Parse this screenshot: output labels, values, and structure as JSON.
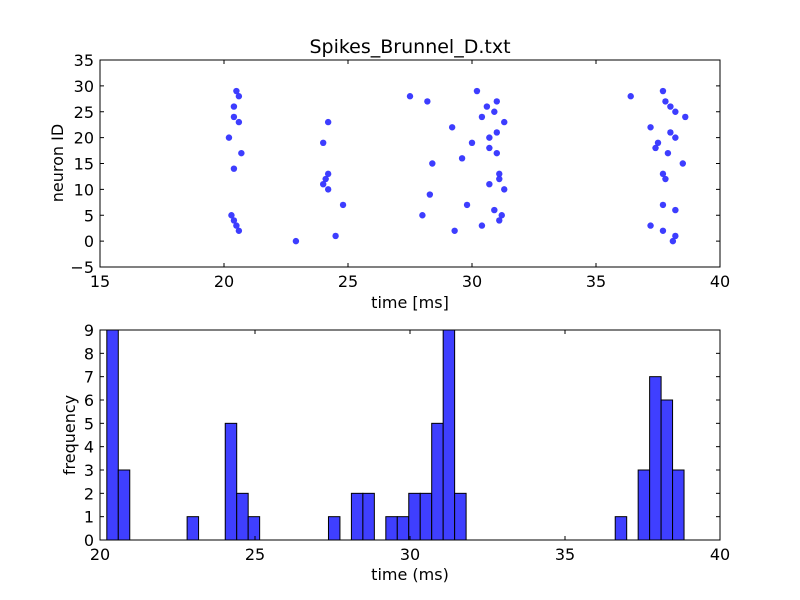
{
  "chart_data": [
    {
      "type": "scatter",
      "title": "Spikes_Brunnel_D.txt",
      "xlabel": "time [ms]",
      "ylabel": "neuron ID",
      "xlim": [
        15,
        40
      ],
      "ylim": [
        -5,
        35
      ],
      "xticks": [
        15,
        20,
        25,
        30,
        35,
        40
      ],
      "yticks": [
        -5,
        0,
        5,
        10,
        15,
        20,
        25,
        30,
        35
      ],
      "xtick_labels": [
        "15",
        "20",
        "25",
        "30",
        "35",
        "40"
      ],
      "ytick_labels": [
        "−5",
        "0",
        "5",
        "10",
        "15",
        "20",
        "25",
        "30",
        "35"
      ],
      "grid": false,
      "color": "#3333ff",
      "points": [
        [
          20.5,
          29
        ],
        [
          20.6,
          28
        ],
        [
          20.4,
          26
        ],
        [
          20.4,
          24
        ],
        [
          20.6,
          23
        ],
        [
          20.2,
          20
        ],
        [
          20.7,
          17
        ],
        [
          20.4,
          14
        ],
        [
          20.3,
          5
        ],
        [
          20.4,
          4
        ],
        [
          20.5,
          3
        ],
        [
          20.6,
          2
        ],
        [
          22.9,
          0
        ],
        [
          24.2,
          23
        ],
        [
          24.0,
          19
        ],
        [
          24.2,
          13
        ],
        [
          24.1,
          12
        ],
        [
          24.0,
          11
        ],
        [
          24.2,
          10
        ],
        [
          24.8,
          7
        ],
        [
          24.5,
          1
        ],
        [
          27.5,
          28
        ],
        [
          28.2,
          27
        ],
        [
          28.4,
          15
        ],
        [
          28.3,
          9
        ],
        [
          28.0,
          5
        ],
        [
          29.3,
          2
        ],
        [
          29.2,
          22
        ],
        [
          29.6,
          16
        ],
        [
          29.8,
          7
        ],
        [
          30.0,
          19
        ],
        [
          30.2,
          29
        ],
        [
          30.4,
          24
        ],
        [
          30.6,
          26
        ],
        [
          31.0,
          27
        ],
        [
          30.9,
          25
        ],
        [
          31.3,
          23
        ],
        [
          31.0,
          21
        ],
        [
          30.7,
          20
        ],
        [
          30.7,
          18
        ],
        [
          31.0,
          17
        ],
        [
          31.1,
          13
        ],
        [
          31.1,
          12
        ],
        [
          30.7,
          11
        ],
        [
          31.3,
          10
        ],
        [
          30.9,
          6
        ],
        [
          31.2,
          5
        ],
        [
          31.1,
          4
        ],
        [
          30.4,
          3
        ],
        [
          36.4,
          28
        ],
        [
          37.7,
          29
        ],
        [
          37.8,
          27
        ],
        [
          38.0,
          26
        ],
        [
          38.2,
          25
        ],
        [
          38.6,
          24
        ],
        [
          37.2,
          22
        ],
        [
          38.0,
          21
        ],
        [
          38.2,
          20
        ],
        [
          37.5,
          19
        ],
        [
          37.4,
          18
        ],
        [
          37.9,
          17
        ],
        [
          38.5,
          15
        ],
        [
          37.7,
          13
        ],
        [
          37.8,
          12
        ],
        [
          37.7,
          7
        ],
        [
          38.2,
          6
        ],
        [
          37.2,
          3
        ],
        [
          37.7,
          2
        ],
        [
          38.2,
          1
        ],
        [
          38.1,
          0
        ]
      ]
    },
    {
      "type": "bar",
      "xlabel": "time (ms)",
      "ylabel": "frequency",
      "xlim": [
        20,
        40
      ],
      "ylim": [
        0,
        9
      ],
      "xticks": [
        20,
        25,
        30,
        35,
        40
      ],
      "yticks": [
        0,
        1,
        2,
        3,
        4,
        5,
        6,
        7,
        8,
        9
      ],
      "xtick_labels": [
        "20",
        "25",
        "30",
        "35",
        "40"
      ],
      "ytick_labels": [
        "0",
        "1",
        "2",
        "3",
        "4",
        "5",
        "6",
        "7",
        "8",
        "9"
      ],
      "grid": false,
      "color": "#3f3fff",
      "bin_width": 0.37,
      "bins": [
        [
          20.22,
          9
        ],
        [
          20.59,
          3
        ],
        [
          22.81,
          1
        ],
        [
          24.04,
          5
        ],
        [
          24.41,
          2
        ],
        [
          24.78,
          1
        ],
        [
          27.37,
          1
        ],
        [
          28.11,
          2
        ],
        [
          28.48,
          2
        ],
        [
          29.22,
          1
        ],
        [
          29.59,
          1
        ],
        [
          29.96,
          2
        ],
        [
          30.33,
          2
        ],
        [
          30.7,
          5
        ],
        [
          31.07,
          9
        ],
        [
          31.44,
          2
        ],
        [
          36.62,
          1
        ],
        [
          37.36,
          3
        ],
        [
          37.73,
          7
        ],
        [
          38.1,
          6
        ],
        [
          38.47,
          3
        ]
      ]
    }
  ]
}
